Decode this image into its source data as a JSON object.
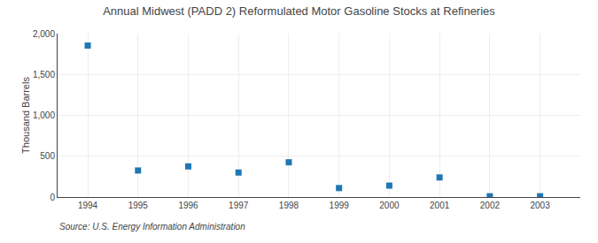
{
  "chart_data": {
    "type": "scatter",
    "title": "Annual Midwest (PADD 2) Reformulated Motor Gasoline Stocks at Refineries",
    "y_label": "Thousand Barrels",
    "annotations": [
      "Source: U.S. Energy Information Administration"
    ],
    "x": [
      1994,
      1995,
      1996,
      1997,
      1998,
      1999,
      2000,
      2001,
      2002,
      2003
    ],
    "values": [
      1853,
      325,
      375,
      300,
      425,
      110,
      140,
      240,
      10,
      10
    ],
    "xlim": [
      1993.4,
      2003.8
    ],
    "xticks": [
      1994,
      1995,
      1996,
      1997,
      1998,
      1999,
      2000,
      2001,
      2002,
      2003
    ],
    "ylim": [
      0,
      2000
    ],
    "yticks": [
      0,
      500,
      {
        "value": 1000,
        "label": "1,000"
      },
      {
        "value": 1500,
        "label": "1,500"
      },
      {
        "value": 2000,
        "label": "2,000"
      }
    ],
    "marker": "square",
    "grid": true
  }
}
